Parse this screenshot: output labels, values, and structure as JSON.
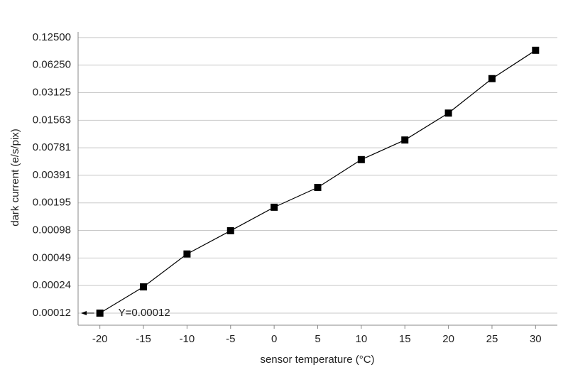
{
  "chart_data": {
    "type": "line",
    "x_label": "sensor temperature (°C)",
    "y_label": "dark current (e/s/pix)",
    "x": [
      -20,
      -15,
      -10,
      -5,
      0,
      5,
      10,
      15,
      20,
      25,
      30
    ],
    "values": [
      0.000122,
      0.000236,
      0.00054,
      0.00097,
      0.00175,
      0.00288,
      0.0058,
      0.0095,
      0.0187,
      0.0445,
      0.0908
    ],
    "color": "#000000",
    "marker": "square",
    "xlim": [
      -22.5,
      32.5
    ],
    "xticks": [
      -20,
      -15,
      -10,
      -5,
      0,
      5,
      10,
      15,
      20,
      25,
      30
    ],
    "ylim": [
      9e-05,
      0.144
    ],
    "y_scale": "log",
    "yticks": [
      {
        "value": 0.0001220703125,
        "label": "0.00012"
      },
      {
        "value": 0.000244140625,
        "label": "0.00024"
      },
      {
        "value": 0.00048828125,
        "label": "0.00049"
      },
      {
        "value": 0.0009765625,
        "label": "0.00098"
      },
      {
        "value": 0.001953125,
        "label": "0.00195"
      },
      {
        "value": 0.00390625,
        "label": "0.00391"
      },
      {
        "value": 0.0078125,
        "label": "0.00781"
      },
      {
        "value": 0.015625,
        "label": "0.01563"
      },
      0.03125,
      {
        "value": 0.0625,
        "label": "0.06250"
      },
      {
        "value": 0.125,
        "label": "0.12500"
      }
    ],
    "grid": true,
    "annotation": "Y=0.00012"
  }
}
